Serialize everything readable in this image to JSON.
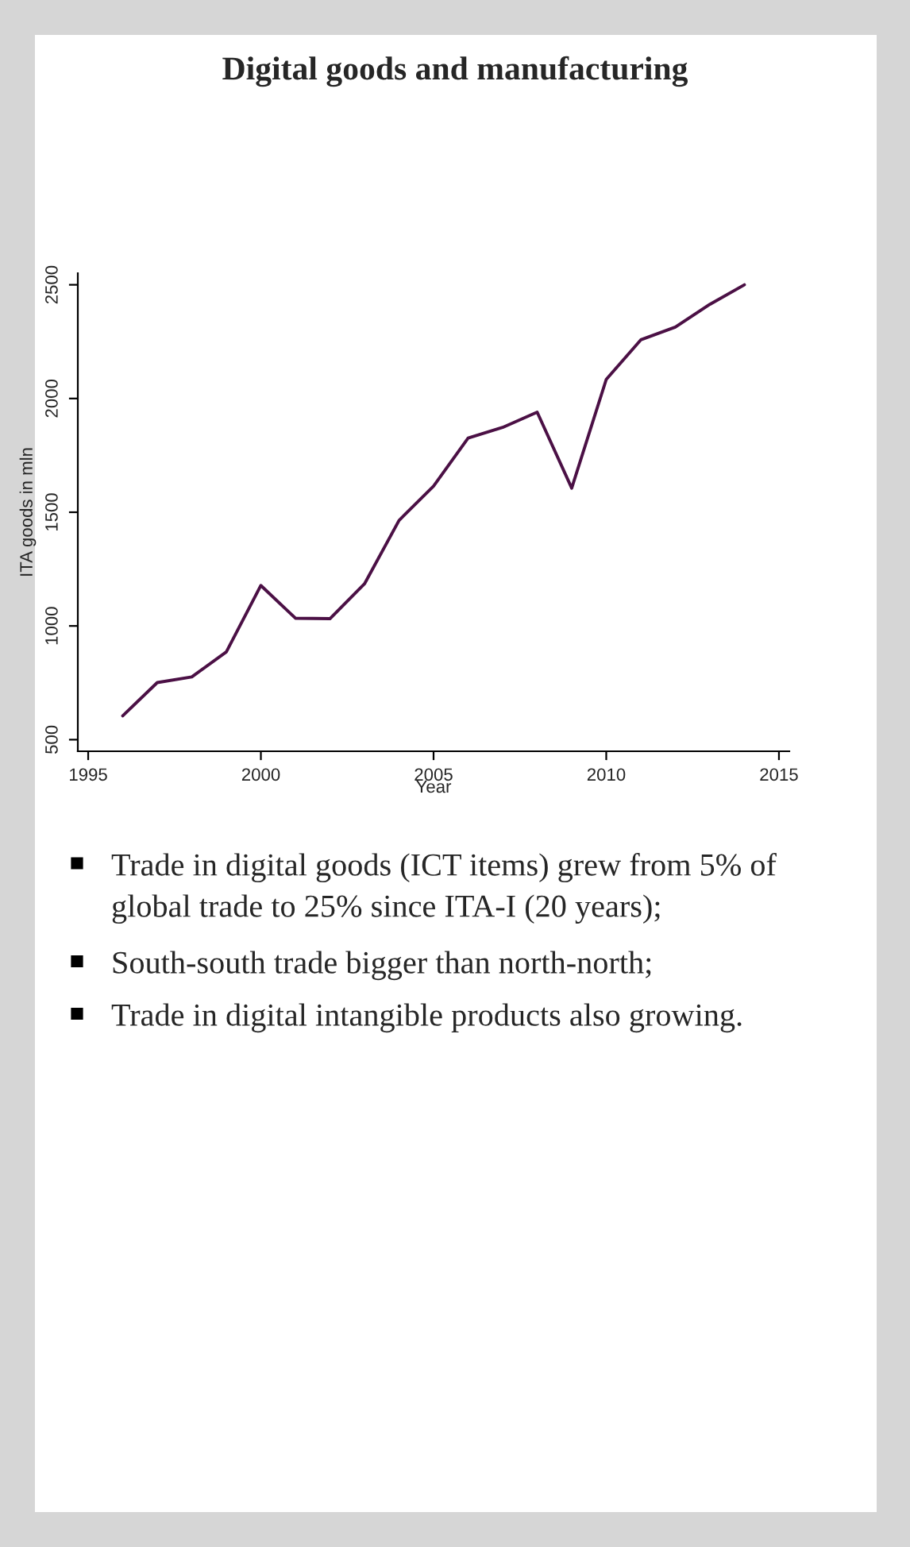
{
  "chart_data": {
    "type": "line",
    "title": "Digital goods and manufacturing",
    "xlabel": "Year",
    "ylabel": "ITA goods in mln",
    "x": [
      1996,
      1997,
      1998,
      1999,
      2000,
      2001,
      2002,
      2003,
      2004,
      2005,
      2006,
      2007,
      2008,
      2009,
      2010,
      2011,
      2012,
      2013,
      2014
    ],
    "series": [
      {
        "color": "#4b1045",
        "values": [
          605,
          751,
          776,
          886,
          1178,
          1034,
          1032,
          1185,
          1464,
          1615,
          1826,
          1873,
          1940,
          1606,
          2084,
          2258,
          2314,
          2414,
          2500
        ]
      }
    ],
    "xlim": [
      1994.7,
      2015.3
    ],
    "ylim": [
      449,
      2551
    ],
    "xticks": [
      1995,
      2000,
      2005,
      2010,
      2015
    ],
    "yticks": [
      500,
      1000,
      1500,
      2000,
      2500
    ],
    "grid": false,
    "legend": false,
    "marker": "none",
    "line_style": "solid",
    "annotations": [
      "Trade in digital goods (ICT items) grew from 5% of global trade to 25% since ITA-I (20 years);",
      "South-south trade bigger than north-north;",
      "Trade in digital intangible products also growing."
    ]
  }
}
